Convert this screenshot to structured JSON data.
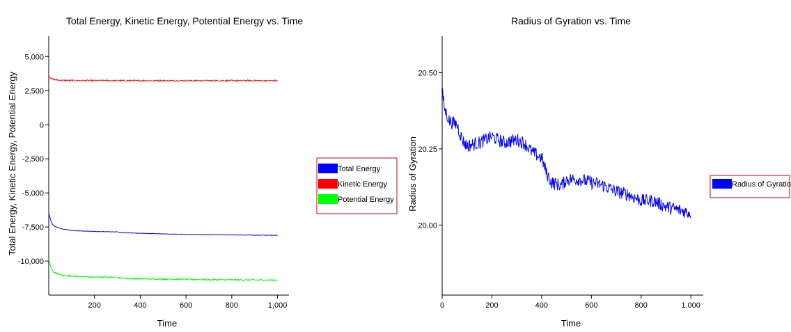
{
  "chart_data": [
    {
      "type": "line",
      "title": "Total Energy, Kinetic Energy, Potential Energy vs. Time",
      "xlabel": "Time",
      "ylabel": "Total Energy, Kinetic Energy, Potential Energy",
      "xlim": [
        0,
        1050
      ],
      "ylim": [
        -12500,
        6500
      ],
      "x_ticks": [
        200,
        400,
        600,
        800,
        1000
      ],
      "x_tick_labels": [
        "200",
        "400",
        "600",
        "800",
        "1,000"
      ],
      "y_ticks": [
        5000,
        2500,
        0,
        -2500,
        -5000,
        -7500,
        -10000
      ],
      "y_tick_labels": [
        "5,000",
        "2,500",
        "0",
        "-2,500",
        "-5,000",
        "-7,500",
        "-10,000"
      ],
      "grid": false,
      "legend_position": "right",
      "series": [
        {
          "name": "Total Energy",
          "color": "#0000ff",
          "x": [
            0,
            10,
            20,
            40,
            60,
            100,
            150,
            200,
            300,
            320,
            400,
            500,
            600,
            700,
            800,
            900,
            1000
          ],
          "y": [
            -6500,
            -7100,
            -7400,
            -7550,
            -7650,
            -7750,
            -7800,
            -7830,
            -7860,
            -7920,
            -7960,
            -8010,
            -8040,
            -8060,
            -8080,
            -8100,
            -8110
          ],
          "noise": 15
        },
        {
          "name": "Kinetic Energy",
          "color": "#ff0000",
          "x": [
            0,
            5,
            10,
            20,
            40,
            60,
            100,
            200,
            400,
            600,
            800,
            1000
          ],
          "y": [
            3600,
            3500,
            3400,
            3330,
            3280,
            3260,
            3250,
            3245,
            3240,
            3240,
            3240,
            3240
          ],
          "noise": 45
        },
        {
          "name": "Potential Energy",
          "color": "#00ff00",
          "x": [
            0,
            10,
            20,
            40,
            60,
            100,
            150,
            200,
            300,
            320,
            400,
            500,
            600,
            700,
            800,
            900,
            1000
          ],
          "y": [
            -9900,
            -10500,
            -10800,
            -10950,
            -11050,
            -11100,
            -11150,
            -11180,
            -11200,
            -11260,
            -11300,
            -11330,
            -11350,
            -11370,
            -11380,
            -11390,
            -11400
          ],
          "noise": 45
        }
      ]
    },
    {
      "type": "line",
      "title": "Radius of Gyration vs. Time",
      "xlabel": "Time",
      "ylabel": "Radius of Gyration",
      "xlim": [
        0,
        1050
      ],
      "ylim": [
        19.77,
        20.62
      ],
      "x_ticks": [
        0,
        200,
        400,
        600,
        800,
        1000
      ],
      "x_tick_labels": [
        "0",
        "200",
        "400",
        "600",
        "800",
        "1,000"
      ],
      "y_ticks": [
        20.5,
        20.25,
        20.0
      ],
      "y_tick_labels": [
        "20.50",
        "20.25",
        "20.00"
      ],
      "grid": false,
      "legend_position": "right",
      "series": [
        {
          "name": "Radius of Gyration",
          "color": "#0000ff",
          "x": [
            0,
            10,
            30,
            60,
            80,
            100,
            150,
            200,
            250,
            300,
            330,
            360,
            400,
            420,
            440,
            480,
            500,
            550,
            600,
            650,
            700,
            750,
            800,
            850,
            900,
            950,
            1000
          ],
          "y": [
            20.44,
            20.38,
            20.34,
            20.33,
            20.28,
            20.26,
            20.27,
            20.29,
            20.27,
            20.28,
            20.27,
            20.24,
            20.22,
            20.17,
            20.14,
            20.13,
            20.15,
            20.15,
            20.14,
            20.13,
            20.11,
            20.1,
            20.08,
            20.08,
            20.06,
            20.05,
            20.04
          ],
          "noise": 0.022
        }
      ]
    }
  ]
}
